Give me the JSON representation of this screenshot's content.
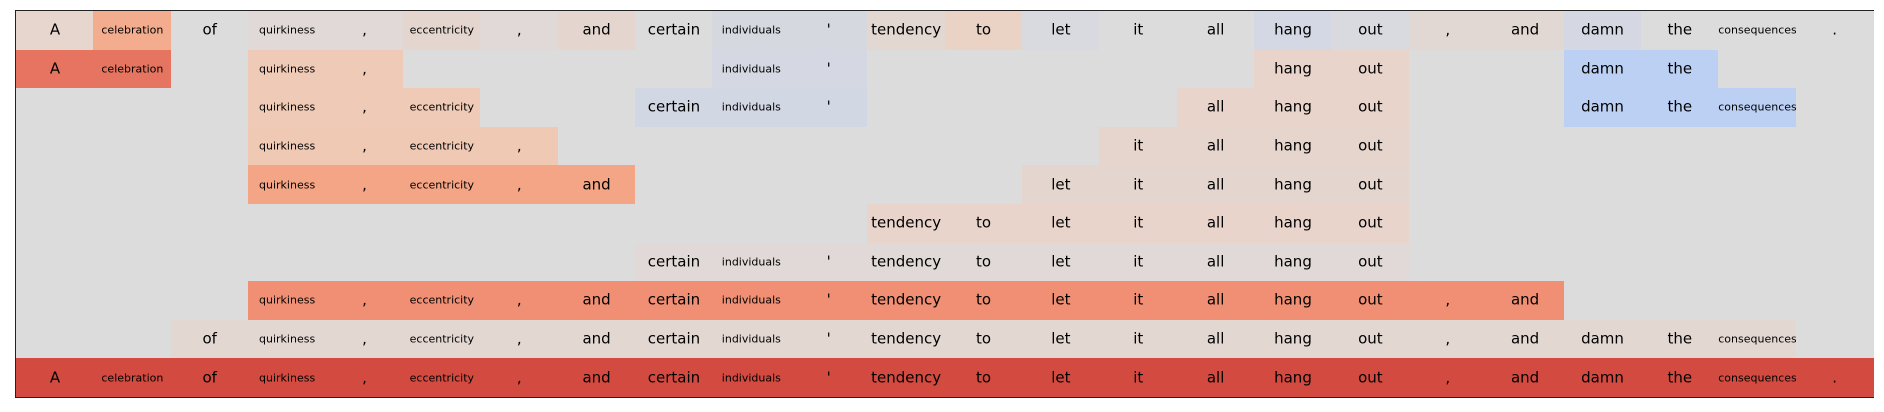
{
  "chart_data": {
    "type": "heatmap",
    "tokens": [
      "A",
      "celebration",
      "of",
      "quirkiness",
      ",",
      "eccentricity",
      ",",
      "and",
      "certain",
      "individuals",
      "'",
      "tendency",
      "to",
      "let",
      "it",
      "all",
      "hang",
      "out",
      ",",
      "and",
      "damn",
      "the",
      "consequences",
      "."
    ],
    "rows": [
      {
        "visible": [
          1,
          1,
          1,
          1,
          1,
          1,
          1,
          1,
          1,
          1,
          1,
          1,
          1,
          1,
          1,
          1,
          1,
          1,
          1,
          1,
          1,
          1,
          1,
          1
        ],
        "colors": [
          "#e6d6cd",
          "#f3ac8e",
          "#dcdcdc",
          "#e1d9d7",
          "#e1d9d7",
          "#e4d6cf",
          "#e1d9d7",
          "#e4d6cf",
          "#dcdcdc",
          "#d6d8e0",
          "#d6d8e0",
          "#e3d7d1",
          "#ead2c5",
          "#d9dadf",
          "#dcdcdc",
          "#dcdcdc",
          "#d3d8e4",
          "#d9dadf",
          "#e2d8d3",
          "#e2d8d3",
          "#d5d8e2",
          "#dcdcdc",
          "#dcdcdc",
          "#dcdcdc"
        ]
      },
      {
        "visible": [
          1,
          1,
          0,
          1,
          1,
          0,
          0,
          0,
          0,
          1,
          1,
          0,
          0,
          0,
          0,
          0,
          1,
          1,
          0,
          0,
          1,
          1,
          0,
          0
        ],
        "colors": [
          "#e67460",
          "#e57461",
          "#dcdcdc",
          "#efcbb7",
          "#efcbb7",
          "#dcdcdc",
          "#dcdcdc",
          "#dcdcdc",
          "#dcdcdc",
          "#d5d8e2",
          "#d5d8e2",
          "#dcdcdc",
          "#dcdcdc",
          "#dcdcdc",
          "#dcdcdc",
          "#dcdcdc",
          "#e8d4ca",
          "#e8d4ca",
          "#dcdcdc",
          "#dcdcdc",
          "#bcd0f4",
          "#bcd0f4",
          "#dcdcdc",
          "#dcdcdc"
        ]
      },
      {
        "visible": [
          0,
          0,
          0,
          1,
          1,
          1,
          0,
          0,
          1,
          1,
          1,
          0,
          0,
          0,
          0,
          1,
          1,
          1,
          0,
          0,
          1,
          1,
          1,
          0
        ],
        "colors": [
          "#dcdcdc",
          "#dcdcdc",
          "#dcdcdc",
          "#efcbb7",
          "#efcbb7",
          "#efcbb7",
          "#dcdcdc",
          "#dcdcdc",
          "#d2d7e4",
          "#d2d7e4",
          "#d2d7e4",
          "#dcdcdc",
          "#dcdcdc",
          "#dcdcdc",
          "#dcdcdc",
          "#e8d4ca",
          "#e8d4ca",
          "#e8d4ca",
          "#dcdcdc",
          "#dcdcdc",
          "#bcd0f4",
          "#bcd0f4",
          "#bcd0f4",
          "#dcdcdc"
        ]
      },
      {
        "visible": [
          0,
          0,
          0,
          1,
          1,
          1,
          1,
          0,
          0,
          0,
          0,
          0,
          0,
          0,
          1,
          1,
          1,
          1,
          0,
          0,
          0,
          0,
          0,
          0
        ],
        "colors": [
          "#dcdcdc",
          "#dcdcdc",
          "#dcdcdc",
          "#f0c9b5",
          "#f0c9b5",
          "#f0c9b5",
          "#f0c9b5",
          "#dcdcdc",
          "#dcdcdc",
          "#dcdcdc",
          "#dcdcdc",
          "#dcdcdc",
          "#dcdcdc",
          "#dcdcdc",
          "#e6d5cc",
          "#e6d5cc",
          "#e6d5cc",
          "#e6d5cc",
          "#dcdcdc",
          "#dcdcdc",
          "#dcdcdc",
          "#dcdcdc",
          "#dcdcdc",
          "#dcdcdc"
        ]
      },
      {
        "visible": [
          0,
          0,
          0,
          1,
          1,
          1,
          1,
          1,
          0,
          0,
          0,
          0,
          0,
          1,
          1,
          1,
          1,
          1,
          0,
          0,
          0,
          0,
          0,
          0
        ],
        "colors": [
          "#dcdcdc",
          "#dcdcdc",
          "#dcdcdc",
          "#f4a585",
          "#f4a585",
          "#f4a585",
          "#f4a585",
          "#f4a585",
          "#dcdcdc",
          "#dcdcdc",
          "#dcdcdc",
          "#dcdcdc",
          "#dcdcdc",
          "#e4d6cf",
          "#e4d6cf",
          "#e4d6cf",
          "#e4d6cf",
          "#e4d6cf",
          "#dcdcdc",
          "#dcdcdc",
          "#dcdcdc",
          "#dcdcdc",
          "#dcdcdc",
          "#dcdcdc"
        ]
      },
      {
        "visible": [
          0,
          0,
          0,
          0,
          0,
          0,
          0,
          0,
          0,
          0,
          0,
          1,
          1,
          1,
          1,
          1,
          1,
          1,
          0,
          0,
          0,
          0,
          0,
          0
        ],
        "colors": [
          "#dcdcdc",
          "#dcdcdc",
          "#dcdcdc",
          "#dcdcdc",
          "#dcdcdc",
          "#dcdcdc",
          "#dcdcdc",
          "#dcdcdc",
          "#dcdcdc",
          "#dcdcdc",
          "#dcdcdc",
          "#e8d4ca",
          "#e8d4ca",
          "#e8d4ca",
          "#e8d4ca",
          "#e8d4ca",
          "#e8d4ca",
          "#e8d4ca",
          "#dcdcdc",
          "#dcdcdc",
          "#dcdcdc",
          "#dcdcdc",
          "#dcdcdc",
          "#dcdcdc"
        ]
      },
      {
        "visible": [
          0,
          0,
          0,
          0,
          0,
          0,
          0,
          0,
          1,
          1,
          1,
          1,
          1,
          1,
          1,
          1,
          1,
          1,
          0,
          0,
          0,
          0,
          0,
          0
        ],
        "colors": [
          "#dcdcdc",
          "#dcdcdc",
          "#dcdcdc",
          "#dcdcdc",
          "#dcdcdc",
          "#dcdcdc",
          "#dcdcdc",
          "#dcdcdc",
          "#e1d9d7",
          "#e1d9d7",
          "#e1d9d7",
          "#e1d9d7",
          "#e1d9d7",
          "#e1d9d7",
          "#e1d9d7",
          "#e1d9d7",
          "#e1d9d7",
          "#e1d9d7",
          "#dcdcdc",
          "#dcdcdc",
          "#dcdcdc",
          "#dcdcdc",
          "#dcdcdc",
          "#dcdcdc"
        ]
      },
      {
        "visible": [
          0,
          0,
          0,
          1,
          1,
          1,
          1,
          1,
          1,
          1,
          1,
          1,
          1,
          1,
          1,
          1,
          1,
          1,
          1,
          1,
          0,
          0,
          0,
          0
        ],
        "colors": [
          "#dcdcdc",
          "#dcdcdc",
          "#dcdcdc",
          "#f08f73",
          "#f08f73",
          "#f08f73",
          "#f08f73",
          "#f08f73",
          "#f08f73",
          "#f08f73",
          "#f08f73",
          "#f08f73",
          "#f08f73",
          "#f08f73",
          "#f08f73",
          "#f08f73",
          "#f08f73",
          "#f08f73",
          "#f08f73",
          "#f08f73",
          "#dcdcdc",
          "#dcdcdc",
          "#dcdcdc",
          "#dcdcdc"
        ]
      },
      {
        "visible": [
          0,
          0,
          1,
          1,
          1,
          1,
          1,
          1,
          1,
          1,
          1,
          1,
          1,
          1,
          1,
          1,
          1,
          1,
          1,
          1,
          1,
          1,
          1,
          0
        ],
        "colors": [
          "#dcdcdc",
          "#dcdcdc",
          "#e3d7d1",
          "#e3d7d1",
          "#e3d7d1",
          "#e3d7d1",
          "#e3d7d1",
          "#e3d7d1",
          "#e3d7d1",
          "#e3d7d1",
          "#e3d7d1",
          "#e3d7d1",
          "#e3d7d1",
          "#e3d7d1",
          "#e3d7d1",
          "#e3d7d1",
          "#e3d7d1",
          "#e3d7d1",
          "#e3d7d1",
          "#e3d7d1",
          "#e3d7d1",
          "#e3d7d1",
          "#e3d7d1",
          "#dcdcdc"
        ]
      },
      {
        "visible": [
          1,
          1,
          1,
          1,
          1,
          1,
          1,
          1,
          1,
          1,
          1,
          1,
          1,
          1,
          1,
          1,
          1,
          1,
          1,
          1,
          1,
          1,
          1,
          1
        ],
        "colors": [
          "#d24a40",
          "#d24a40",
          "#d24a40",
          "#d24a40",
          "#d24a40",
          "#d24a40",
          "#d24a40",
          "#d24a40",
          "#d24a40",
          "#d24a40",
          "#d24a40",
          "#d24a40",
          "#d24a40",
          "#d24a40",
          "#d24a40",
          "#d24a40",
          "#d24a40",
          "#d24a40",
          "#d24a40",
          "#d24a40",
          "#d24a40",
          "#d24a40",
          "#d24a40",
          "#d24a40"
        ]
      }
    ]
  }
}
